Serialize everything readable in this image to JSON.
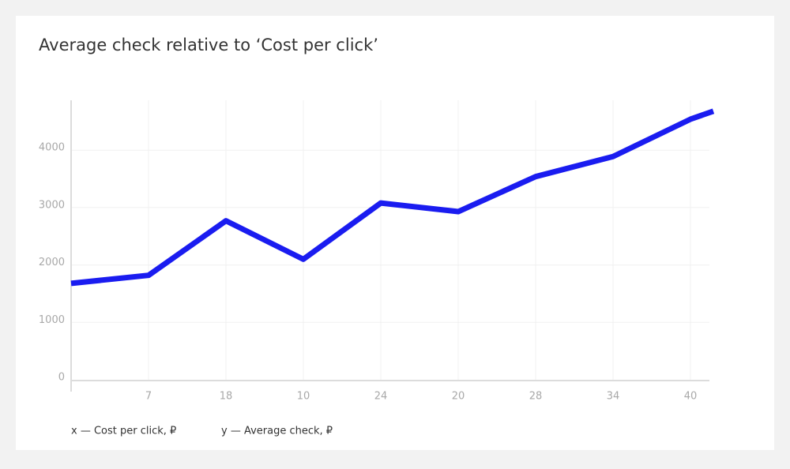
{
  "chart_data": {
    "type": "line",
    "title": "Average check relative to ‘Cost per click’",
    "x_axis_label": "x — Cost per click, ₽",
    "y_axis_label": "y — Average check, ₽",
    "categories": [
      null,
      "7",
      "18",
      "10",
      "24",
      "20",
      "28",
      "34",
      "40",
      null
    ],
    "series": [
      {
        "name": "Average check",
        "color": "#1a1cf0",
        "values": [
          1680,
          1820,
          2770,
          2100,
          3080,
          2930,
          3540,
          3890,
          4540,
          4680
        ]
      }
    ],
    "ylim": [
      0,
      4870
    ],
    "yticks": [
      0,
      1000,
      2000,
      3000,
      4000
    ],
    "grid": true
  }
}
